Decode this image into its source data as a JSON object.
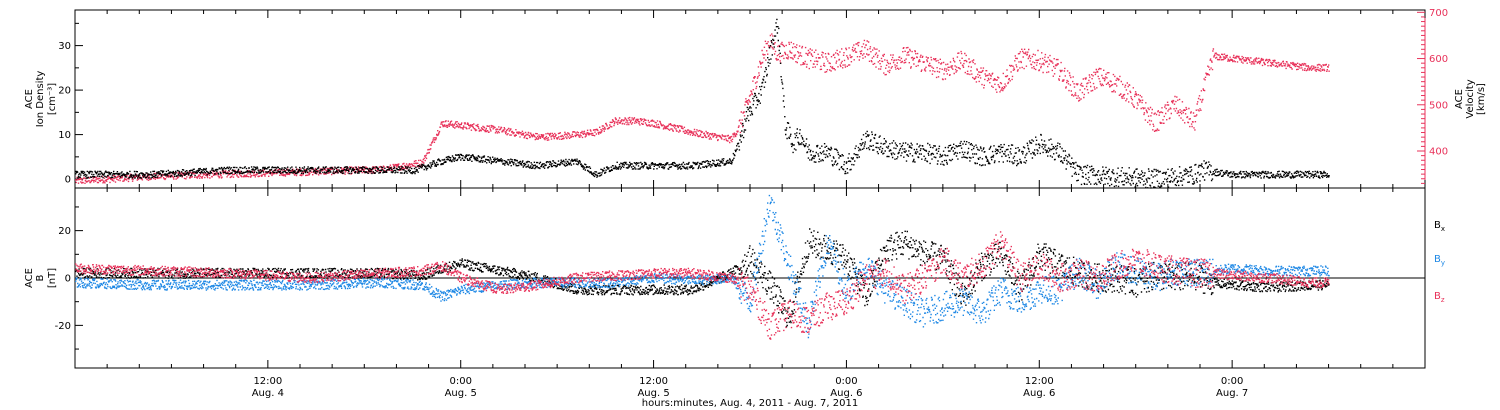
{
  "colors": {
    "density": "#000000",
    "velocity": "#e8325a",
    "bx": "#000000",
    "by": "#1e88e5",
    "bz": "#e8325a",
    "axis": "#000000"
  },
  "x_ticks": [
    {
      "day": 0.5,
      "time": "12:00",
      "date": "Aug. 4"
    },
    {
      "day": 1.0,
      "time": "0:00",
      "date": "Aug. 5"
    },
    {
      "day": 1.5,
      "time": "12:00",
      "date": "Aug. 5"
    },
    {
      "day": 2.0,
      "time": "0:00",
      "date": "Aug. 6"
    },
    {
      "day": 2.5,
      "time": "12:00",
      "date": "Aug. 6"
    },
    {
      "day": 3.0,
      "time": "0:00",
      "date": "Aug. 7"
    }
  ],
  "xlabel": "hours:minutes, Aug.  4, 2011 - Aug.  7, 2011",
  "top_panel": {
    "left_label": [
      "ACE",
      "Ion Density",
      "[cm⁻³]"
    ],
    "right_label": [
      "ACE",
      "Velocity",
      "[km/s]"
    ],
    "left_ticks": [
      "0",
      "10",
      "20",
      "30"
    ],
    "right_ticks": [
      "400",
      "500",
      "600",
      "700"
    ]
  },
  "bottom_panel": {
    "left_label": [
      "ACE",
      "B",
      "[nT]"
    ],
    "left_ticks": [
      "-20",
      "0",
      "20"
    ],
    "legend": [
      {
        "name": "B",
        "sub": "x",
        "color_key": "bx"
      },
      {
        "name": "B",
        "sub": "y",
        "color_key": "by"
      },
      {
        "name": "B",
        "sub": "z",
        "color_key": "bz"
      }
    ]
  },
  "chart_data": [
    {
      "type": "scatter",
      "title": "",
      "xlabel": "hours:minutes, Aug.  4, 2011 - Aug.  7, 2011",
      "x_unit": "days since Aug. 4, 2011 00:00 UT",
      "xlim": [
        0.0,
        3.5
      ],
      "ylabel": "ACE Ion Density [cm⁻³]",
      "ylim": [
        -2,
        38
      ],
      "y2label": "ACE Velocity [km/s]",
      "y2lim": [
        320,
        705
      ],
      "grid": false,
      "series": [
        {
          "name": "Ion Density",
          "axis": "left",
          "color_key": "density",
          "x": [
            0.0,
            0.2,
            0.4,
            0.6,
            0.8,
            0.88,
            0.95,
            1.0,
            1.1,
            1.2,
            1.3,
            1.35,
            1.4,
            1.5,
            1.6,
            1.7,
            1.72,
            1.74,
            1.76,
            1.78,
            1.8,
            1.82,
            1.84,
            1.86,
            1.88,
            1.9,
            1.95,
            2.0,
            2.05,
            2.1,
            2.15,
            2.2,
            2.25,
            2.3,
            2.35,
            2.4,
            2.45,
            2.5,
            2.55,
            2.6,
            2.8,
            2.9,
            2.92,
            3.0,
            3.2,
            3.25
          ],
          "y": [
            1,
            1,
            2,
            2,
            2,
            2,
            4,
            5,
            4,
            3,
            4,
            1,
            3,
            3,
            3,
            4,
            8,
            14,
            17,
            20,
            28,
            35,
            12,
            8,
            10,
            6,
            6,
            3,
            9,
            7,
            6,
            6,
            5,
            7,
            5,
            6,
            5,
            8,
            6,
            1,
            0,
            1,
            2,
            1,
            1,
            1
          ]
        },
        {
          "name": "Velocity",
          "axis": "right",
          "color_key": "velocity",
          "x": [
            0.0,
            0.2,
            0.4,
            0.6,
            0.8,
            0.9,
            0.95,
            1.0,
            1.1,
            1.2,
            1.3,
            1.35,
            1.4,
            1.45,
            1.5,
            1.6,
            1.7,
            1.72,
            1.75,
            1.78,
            1.8,
            1.82,
            1.85,
            1.9,
            1.95,
            2.0,
            2.05,
            2.1,
            2.15,
            2.2,
            2.25,
            2.3,
            2.35,
            2.4,
            2.45,
            2.5,
            2.55,
            2.6,
            2.65,
            2.7,
            2.75,
            2.8,
            2.85,
            2.9,
            2.95,
            3.0,
            3.05,
            3.1,
            3.2,
            3.25
          ],
          "y": [
            335,
            345,
            350,
            355,
            360,
            375,
            460,
            455,
            445,
            430,
            435,
            440,
            465,
            465,
            460,
            440,
            425,
            450,
            520,
            600,
            640,
            610,
            620,
            600,
            590,
            605,
            620,
            585,
            605,
            590,
            575,
            595,
            560,
            545,
            600,
            595,
            575,
            525,
            560,
            545,
            510,
            460,
            500,
            460,
            605,
            600,
            595,
            590,
            580,
            580
          ]
        }
      ]
    },
    {
      "type": "scatter",
      "title": "",
      "xlabel": "hours:minutes, Aug.  4, 2011 - Aug.  7, 2011",
      "x_unit": "days since Aug. 4, 2011 00:00 UT",
      "xlim": [
        0.0,
        3.5
      ],
      "ylabel": "ACE B [nT]",
      "ylim": [
        -38,
        38
      ],
      "grid": false,
      "zero_line": true,
      "legend_position": "right",
      "series": [
        {
          "name": "Bx",
          "color_key": "bx",
          "x": [
            0.0,
            0.2,
            0.4,
            0.6,
            0.8,
            0.9,
            0.95,
            1.0,
            1.1,
            1.2,
            1.3,
            1.4,
            1.5,
            1.6,
            1.7,
            1.75,
            1.8,
            1.85,
            1.9,
            1.95,
            2.0,
            2.05,
            2.1,
            2.15,
            2.2,
            2.25,
            2.3,
            2.35,
            2.4,
            2.45,
            2.5,
            2.55,
            2.6,
            2.65,
            2.7,
            2.75,
            2.8,
            2.85,
            2.9,
            2.95,
            3.0,
            3.1,
            3.2,
            3.25
          ],
          "y": [
            2,
            2,
            2,
            2,
            2,
            1,
            4,
            6,
            3,
            0,
            -5,
            -5,
            -5,
            -5,
            2,
            8,
            -3,
            -17,
            15,
            12,
            8,
            -8,
            12,
            15,
            10,
            8,
            -8,
            5,
            10,
            -5,
            10,
            5,
            2,
            0,
            0,
            -2,
            1,
            0,
            1,
            -2,
            -3,
            -4,
            -3,
            -3
          ]
        },
        {
          "name": "By",
          "color_key": "by",
          "x": [
            0.0,
            0.2,
            0.4,
            0.6,
            0.8,
            0.9,
            0.95,
            1.0,
            1.1,
            1.2,
            1.3,
            1.4,
            1.5,
            1.6,
            1.7,
            1.75,
            1.8,
            1.85,
            1.9,
            1.95,
            2.0,
            2.05,
            2.1,
            2.15,
            2.2,
            2.25,
            2.3,
            2.35,
            2.4,
            2.45,
            2.5,
            2.55,
            2.6,
            2.65,
            2.7,
            2.75,
            2.8,
            2.85,
            2.9,
            2.95,
            3.0,
            3.1,
            3.2,
            3.25
          ],
          "y": [
            -2,
            -3,
            -3,
            -3,
            -2,
            -3,
            -8,
            -5,
            -3,
            -2,
            -2,
            -2,
            0,
            -1,
            0,
            -10,
            33,
            5,
            -20,
            15,
            -5,
            5,
            -5,
            -10,
            -15,
            -12,
            -10,
            -15,
            -5,
            -10,
            -5,
            -5,
            3,
            -3,
            5,
            3,
            0,
            3,
            2,
            3,
            4,
            3,
            3,
            3
          ]
        },
        {
          "name": "Bz",
          "color_key": "bz",
          "x": [
            0.0,
            0.2,
            0.4,
            0.6,
            0.8,
            0.9,
            0.95,
            1.0,
            1.1,
            1.2,
            1.3,
            1.4,
            1.5,
            1.6,
            1.7,
            1.75,
            1.8,
            1.85,
            1.9,
            1.95,
            2.0,
            2.05,
            2.1,
            2.15,
            2.2,
            2.25,
            2.3,
            2.35,
            2.4,
            2.45,
            2.5,
            2.55,
            2.6,
            2.65,
            2.7,
            2.75,
            2.8,
            2.85,
            2.9,
            2.95,
            3.0,
            3.1,
            3.2,
            3.25
          ],
          "y": [
            4,
            3,
            2,
            0,
            2,
            3,
            5,
            0,
            -5,
            -3,
            0,
            1,
            2,
            2,
            0,
            -5,
            -20,
            -15,
            -18,
            -12,
            -10,
            0,
            3,
            -5,
            0,
            8,
            0,
            5,
            15,
            0,
            5,
            0,
            2,
            0,
            5,
            7,
            5,
            3,
            2,
            2,
            1,
            0,
            -2,
            -2
          ]
        }
      ]
    }
  ]
}
